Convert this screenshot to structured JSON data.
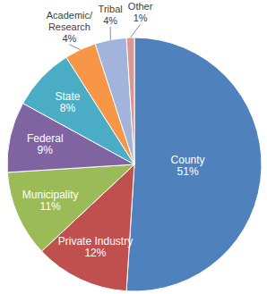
{
  "chart_data": {
    "type": "pie",
    "categories": [
      "County",
      "Private Industry",
      "Municipality",
      "Federal",
      "State",
      "Academic/Research",
      "Tribal",
      "Other"
    ],
    "values": [
      51,
      12,
      11,
      9,
      8,
      4,
      4,
      1
    ],
    "value_labels": [
      "51%",
      "12%",
      "11%",
      "9%",
      "8%",
      "4%",
      "4%",
      "1%"
    ],
    "colors": [
      "#4f81bd",
      "#c0504d",
      "#9bbb59",
      "#8064a2",
      "#4bacc6",
      "#f79646",
      "#a3b4dc",
      "#d99795"
    ],
    "data_labels": true
  }
}
